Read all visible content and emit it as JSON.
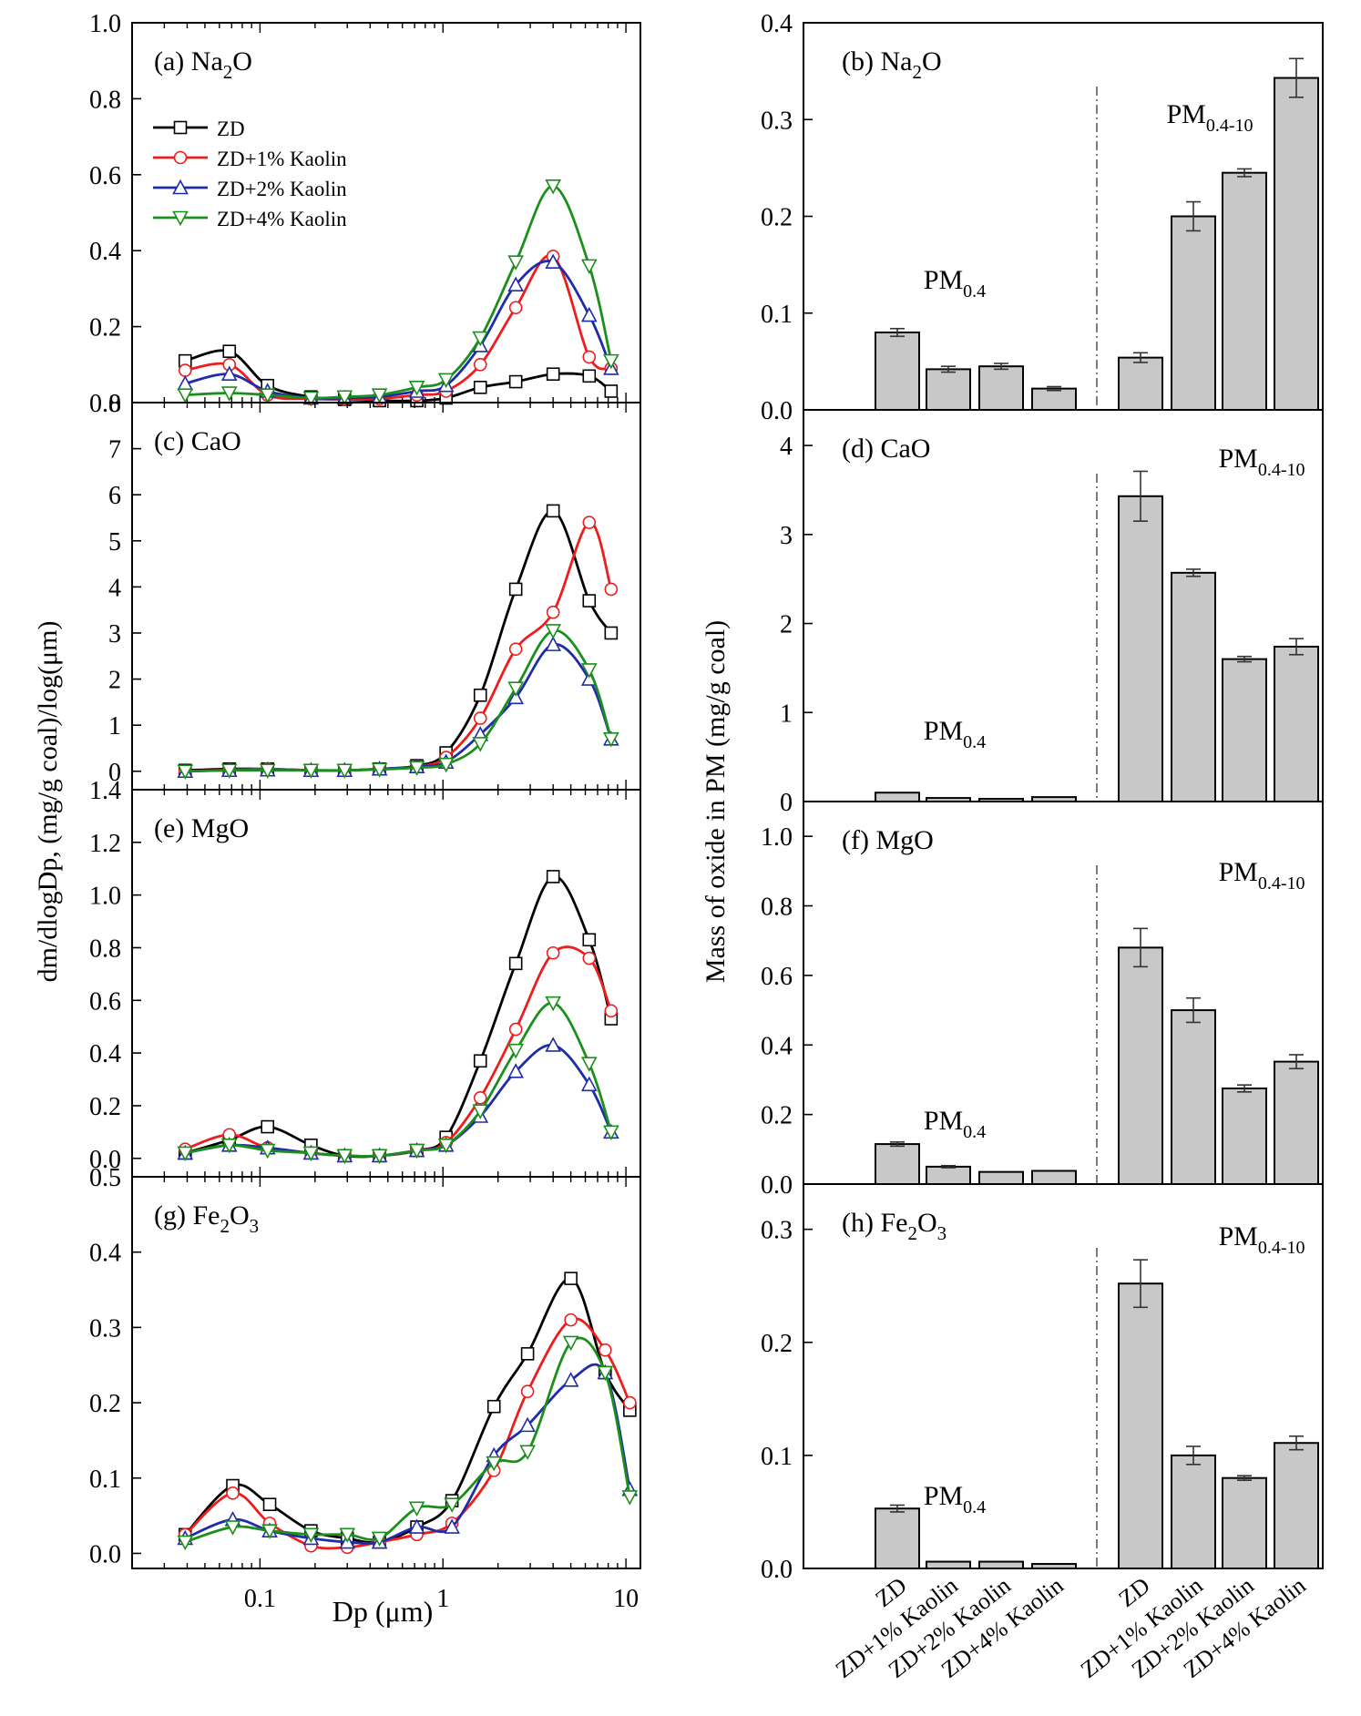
{
  "figure": {
    "left_ylabel": "dm/dlogDp, (mg/g coal)/log(μm)",
    "left_xlabel": "Dp (μm)",
    "right_ylabel": "Mass of oxide in PM (mg/g coal)",
    "x_ticks": [
      "0.1",
      "1",
      "10"
    ],
    "group_labels": {
      "fine": "PM",
      "fine_sub": "0.4",
      "coarse": "PM",
      "coarse_sub": "0.4-10"
    }
  },
  "legend": {
    "entries": [
      "ZD",
      "ZD+1% Kaolin",
      "ZD+2% Kaolin",
      "ZD+4% Kaolin"
    ],
    "colors": [
      "#000000",
      "#ee1c1c",
      "#1f2ca8",
      "#1b8f1b"
    ],
    "markers": [
      "square",
      "circle",
      "triangle-up",
      "triangle-down"
    ]
  },
  "chart_data": [
    {
      "type": "line",
      "panel": "(a)",
      "title_pre": "Na",
      "title_sub": "2",
      "title_post": "O",
      "xscale": "log",
      "xlim": [
        0.02,
        12
      ],
      "ylim": [
        0,
        1.0
      ],
      "yticks": [
        "0.0",
        "0.2",
        "0.4",
        "0.6",
        "0.8",
        "1.0"
      ],
      "x": [
        0.039,
        0.068,
        0.11,
        0.19,
        0.29,
        0.45,
        0.72,
        1.04,
        1.6,
        2.5,
        4.0,
        6.3,
        8.3
      ],
      "series": [
        {
          "name": "ZD",
          "values": [
            0.11,
            0.135,
            0.045,
            0.015,
            0.008,
            0.005,
            0.005,
            0.012,
            0.04,
            0.055,
            0.075,
            0.07,
            0.03
          ]
        },
        {
          "name": "ZD+1% Kaolin",
          "values": [
            0.085,
            0.1,
            0.02,
            0.01,
            0.008,
            0.01,
            0.02,
            0.03,
            0.1,
            0.25,
            0.385,
            0.12,
            0.09
          ]
        },
        {
          "name": "ZD+2% Kaolin",
          "values": [
            0.05,
            0.075,
            0.03,
            0.012,
            0.012,
            0.015,
            0.03,
            0.045,
            0.15,
            0.31,
            0.37,
            0.23,
            0.09
          ]
        },
        {
          "name": "ZD+4% Kaolin",
          "values": [
            0.02,
            0.025,
            0.02,
            0.012,
            0.015,
            0.02,
            0.04,
            0.06,
            0.17,
            0.37,
            0.57,
            0.36,
            0.11
          ]
        }
      ]
    },
    {
      "type": "line",
      "panel": "(c)",
      "title_pre": "CaO",
      "title_sub": "",
      "title_post": "",
      "xscale": "log",
      "xlim": [
        0.02,
        12
      ],
      "ylim": [
        -0.4,
        8
      ],
      "yticks": [
        "0",
        "1",
        "2",
        "3",
        "4",
        "5",
        "6",
        "7",
        "8"
      ],
      "x": [
        0.039,
        0.068,
        0.11,
        0.19,
        0.29,
        0.45,
        0.72,
        1.04,
        1.6,
        2.5,
        4.0,
        6.3,
        8.3
      ],
      "series": [
        {
          "name": "ZD",
          "values": [
            0.02,
            0.05,
            0.05,
            0.02,
            0.02,
            0.05,
            0.12,
            0.4,
            1.65,
            3.95,
            5.65,
            3.7,
            3.0
          ]
        },
        {
          "name": "ZD+1% Kaolin",
          "values": [
            0.0,
            0.03,
            0.05,
            0.02,
            0.02,
            0.05,
            0.1,
            0.3,
            1.15,
            2.65,
            3.45,
            5.4,
            3.95
          ]
        },
        {
          "name": "ZD+2% Kaolin",
          "values": [
            0.0,
            0.02,
            0.03,
            0.02,
            0.02,
            0.05,
            0.1,
            0.2,
            0.8,
            1.6,
            2.75,
            2.0,
            0.7
          ]
        },
        {
          "name": "ZD+4% Kaolin",
          "values": [
            0.0,
            0.02,
            0.02,
            0.02,
            0.02,
            0.04,
            0.08,
            0.15,
            0.6,
            1.8,
            3.05,
            2.2,
            0.7
          ]
        }
      ]
    },
    {
      "type": "line",
      "panel": "(e)",
      "title_pre": "MgO",
      "title_sub": "",
      "title_post": "",
      "xscale": "log",
      "xlim": [
        0.02,
        12
      ],
      "ylim": [
        -0.07,
        1.4
      ],
      "yticks": [
        "0.0",
        "0.2",
        "0.4",
        "0.6",
        "0.8",
        "1.0",
        "1.2",
        "1.4"
      ],
      "x": [
        0.039,
        0.068,
        0.11,
        0.19,
        0.29,
        0.45,
        0.72,
        1.04,
        1.6,
        2.5,
        4.0,
        6.3,
        8.3
      ],
      "series": [
        {
          "name": "ZD",
          "values": [
            0.02,
            0.07,
            0.12,
            0.05,
            0.01,
            0.01,
            0.03,
            0.08,
            0.37,
            0.74,
            1.07,
            0.83,
            0.53
          ]
        },
        {
          "name": "ZD+1% Kaolin",
          "values": [
            0.035,
            0.09,
            0.04,
            0.02,
            0.01,
            0.01,
            0.03,
            0.06,
            0.23,
            0.49,
            0.78,
            0.76,
            0.56
          ]
        },
        {
          "name": "ZD+2% Kaolin",
          "values": [
            0.02,
            0.05,
            0.04,
            0.02,
            0.01,
            0.01,
            0.03,
            0.05,
            0.16,
            0.33,
            0.43,
            0.28,
            0.1
          ]
        },
        {
          "name": "ZD+4% Kaolin",
          "values": [
            0.02,
            0.05,
            0.03,
            0.02,
            0.01,
            0.01,
            0.03,
            0.05,
            0.18,
            0.41,
            0.59,
            0.36,
            0.1
          ]
        }
      ]
    },
    {
      "type": "line",
      "panel": "(g)",
      "title_pre": "Fe",
      "title_sub": "2",
      "title_post": "O",
      "title_sub2": "3",
      "xscale": "log",
      "xlim": [
        0.02,
        12
      ],
      "ylim": [
        -0.02,
        0.5
      ],
      "yticks": [
        "0.0",
        "0.1",
        "0.2",
        "0.3",
        "0.4",
        "0.5"
      ],
      "x": [
        0.039,
        0.071,
        0.113,
        0.19,
        0.3,
        0.45,
        0.72,
        1.12,
        1.9,
        2.9,
        5.0,
        7.7,
        10.5
      ],
      "series": [
        {
          "name": "ZD",
          "values": [
            0.025,
            0.09,
            0.065,
            0.03,
            0.02,
            0.015,
            0.035,
            0.07,
            0.195,
            0.265,
            0.365,
            0.24,
            0.19
          ]
        },
        {
          "name": "ZD+1% Kaolin",
          "values": [
            0.025,
            0.08,
            0.04,
            0.01,
            0.008,
            0.015,
            0.025,
            0.04,
            0.11,
            0.215,
            0.31,
            0.27,
            0.2
          ]
        },
        {
          "name": "ZD+2% Kaolin",
          "values": [
            0.02,
            0.045,
            0.03,
            0.02,
            0.015,
            0.015,
            0.035,
            0.035,
            0.13,
            0.17,
            0.23,
            0.24,
            0.085
          ]
        },
        {
          "name": "ZD+4% Kaolin",
          "values": [
            0.015,
            0.035,
            0.03,
            0.025,
            0.025,
            0.02,
            0.06,
            0.065,
            0.12,
            0.135,
            0.28,
            0.24,
            0.075
          ]
        }
      ]
    },
    {
      "type": "bar",
      "panel": "(b)",
      "title_pre": "Na",
      "title_sub": "2",
      "title_post": "O",
      "ylim": [
        0,
        0.4
      ],
      "yticks": [
        "0.0",
        "0.1",
        "0.2",
        "0.3",
        "0.4"
      ],
      "categories": [
        "ZD",
        "ZD+1% Kaolin",
        "ZD+2% Kaolin",
        "ZD+4% Kaolin",
        "ZD",
        "ZD+1% Kaolin",
        "ZD+2% Kaolin",
        "ZD+4% Kaolin"
      ],
      "groups": [
        "PM0.4",
        "PM0.4",
        "PM0.4",
        "PM0.4",
        "PM0.4-10",
        "PM0.4-10",
        "PM0.4-10",
        "PM0.4-10"
      ],
      "values": [
        0.08,
        0.042,
        0.045,
        0.022,
        0.054,
        0.2,
        0.245,
        0.343
      ],
      "errors": [
        0.004,
        0.003,
        0.003,
        0.002,
        0.005,
        0.015,
        0.004,
        0.02
      ]
    },
    {
      "type": "bar",
      "panel": "(d)",
      "title_pre": "CaO",
      "title_sub": "",
      "title_post": "",
      "ylim": [
        0,
        4.4
      ],
      "yticks": [
        "0",
        "1",
        "2",
        "3",
        "4"
      ],
      "categories": [
        "ZD",
        "ZD+1% Kaolin",
        "ZD+2% Kaolin",
        "ZD+4% Kaolin",
        "ZD",
        "ZD+1% Kaolin",
        "ZD+2% Kaolin",
        "ZD+4% Kaolin"
      ],
      "groups": [
        "PM0.4",
        "PM0.4",
        "PM0.4",
        "PM0.4",
        "PM0.4-10",
        "PM0.4-10",
        "PM0.4-10",
        "PM0.4-10"
      ],
      "values": [
        0.1,
        0.04,
        0.03,
        0.05,
        3.43,
        2.57,
        1.6,
        1.74
      ],
      "errors": [
        0.0,
        0.0,
        0.0,
        0.0,
        0.28,
        0.04,
        0.03,
        0.09
      ]
    },
    {
      "type": "bar",
      "panel": "(f)",
      "title_pre": "MgO",
      "title_sub": "",
      "title_post": "",
      "ylim": [
        0,
        1.1
      ],
      "yticks": [
        "0.0",
        "0.2",
        "0.4",
        "0.6",
        "0.8",
        "1.0"
      ],
      "categories": [
        "ZD",
        "ZD+1% Kaolin",
        "ZD+2% Kaolin",
        "ZD+4% Kaolin",
        "ZD",
        "ZD+1% Kaolin",
        "ZD+2% Kaolin",
        "ZD+4% Kaolin"
      ],
      "groups": [
        "PM0.4",
        "PM0.4",
        "PM0.4",
        "PM0.4",
        "PM0.4-10",
        "PM0.4-10",
        "PM0.4-10",
        "PM0.4-10"
      ],
      "values": [
        0.115,
        0.05,
        0.035,
        0.038,
        0.68,
        0.5,
        0.275,
        0.352
      ],
      "errors": [
        0.006,
        0.003,
        0.0,
        0.0,
        0.055,
        0.035,
        0.01,
        0.02
      ]
    },
    {
      "type": "bar",
      "panel": "(h)",
      "title_pre": "Fe",
      "title_sub": "2",
      "title_post": "O",
      "title_sub2": "3",
      "ylim": [
        0,
        0.34
      ],
      "yticks": [
        "0.0",
        "0.1",
        "0.2",
        "0.3"
      ],
      "categories": [
        "ZD",
        "ZD+1% Kaolin",
        "ZD+2% Kaolin",
        "ZD+4% Kaolin",
        "ZD",
        "ZD+1% Kaolin",
        "ZD+2% Kaolin",
        "ZD+4% Kaolin"
      ],
      "groups": [
        "PM0.4",
        "PM0.4",
        "PM0.4",
        "PM0.4",
        "PM0.4-10",
        "PM0.4-10",
        "PM0.4-10",
        "PM0.4-10"
      ],
      "values": [
        0.053,
        0.006,
        0.006,
        0.004,
        0.252,
        0.1,
        0.08,
        0.111
      ],
      "errors": [
        0.003,
        0.0,
        0.0,
        0.0,
        0.021,
        0.008,
        0.002,
        0.006
      ]
    }
  ]
}
